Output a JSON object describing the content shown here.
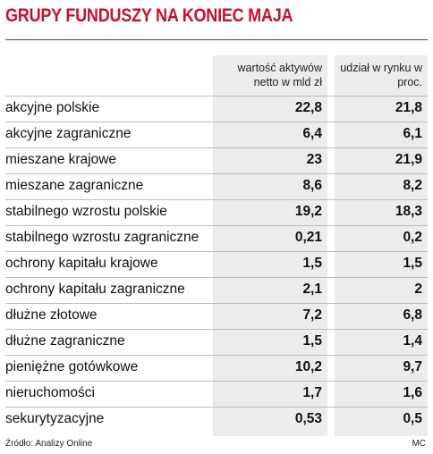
{
  "chart_data": {
    "type": "table",
    "title": "GRUPY FUNDUSZY NA KONIEC MAJA",
    "columns": [
      "wartość aktywów netto w mld zł",
      "udział w rynku w proc."
    ],
    "rows": [
      {
        "label": "akcyjne polskie",
        "values": [
          "22,8",
          "21,8"
        ]
      },
      {
        "label": "akcyjne zagraniczne",
        "values": [
          "6,4",
          "6,1"
        ]
      },
      {
        "label": "mieszane krajowe",
        "values": [
          "23",
          "21,9"
        ]
      },
      {
        "label": "mieszane zagraniczne",
        "values": [
          "8,6",
          "8,2"
        ]
      },
      {
        "label": "stabilnego wzrostu polskie",
        "values": [
          "19,2",
          "18,3"
        ]
      },
      {
        "label": "stabilnego wzrostu zagraniczne",
        "values": [
          "0,21",
          "0,2"
        ]
      },
      {
        "label": "ochrony kapitału krajowe",
        "values": [
          "1,5",
          "1,5"
        ]
      },
      {
        "label": "ochrony kapitału zagraniczne",
        "values": [
          "2,1",
          "2"
        ]
      },
      {
        "label": "dłużne złotowe",
        "values": [
          "7,2",
          "6,8"
        ]
      },
      {
        "label": "dłużne zagraniczne",
        "values": [
          "1,5",
          "1,4"
        ]
      },
      {
        "label": "pieniężne gotówkowe",
        "values": [
          "10,2",
          "9,7"
        ]
      },
      {
        "label": "nieruchomości",
        "values": [
          "1,7",
          "1,6"
        ]
      },
      {
        "label": "sekurytyzacyjne",
        "values": [
          "0,53",
          "0,5"
        ]
      }
    ],
    "source": "Źródło: Analizy Online",
    "credit": "MC"
  },
  "colors": {
    "title": "#c8102e",
    "column_background": "#ececec",
    "row_separator": "#bdbdbd"
  }
}
